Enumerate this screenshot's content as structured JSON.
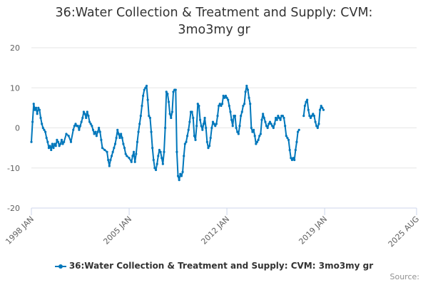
{
  "chart_data": {
    "type": "line",
    "title_lines": [
      "36:Water Collection & Treatment and Supply: CVM:",
      "3mo3my gr"
    ],
    "xlabel": "",
    "ylabel": "",
    "ylim": [
      -20,
      20
    ],
    "yticks": [
      20,
      10,
      0,
      -10,
      -20
    ],
    "x_range_months": [
      0,
      331
    ],
    "xticks": [
      {
        "label": "1998 JAN",
        "month": 0
      },
      {
        "label": "2005 JAN",
        "month": 84
      },
      {
        "label": "2012 JAN",
        "month": 168
      },
      {
        "label": "2019 JAN",
        "month": 252
      },
      {
        "label": "2025 AUG",
        "month": 331
      }
    ],
    "grid": "horizontal",
    "legend_position": "bottom",
    "series": [
      {
        "name": "36:Water Collection & Treatment and Supply: CVM: 3mo3my gr",
        "color": "#0077bb",
        "keypoints": [
          [
            0,
            -3.5
          ],
          [
            1,
            1.5
          ],
          [
            2,
            6.0
          ],
          [
            3,
            4.5
          ],
          [
            4,
            5.0
          ],
          [
            5,
            3.5
          ],
          [
            6,
            5.0
          ],
          [
            7,
            4.5
          ],
          [
            8,
            2.5
          ],
          [
            9,
            1.0
          ],
          [
            10,
            0.0
          ],
          [
            11,
            -0.5
          ],
          [
            12,
            -1.0
          ],
          [
            13,
            -2.5
          ],
          [
            14,
            -3.5
          ],
          [
            15,
            -5.0
          ],
          [
            16,
            -4.5
          ],
          [
            17,
            -5.5
          ],
          [
            18,
            -4.0
          ],
          [
            19,
            -5.0
          ],
          [
            20,
            -4.0
          ],
          [
            21,
            -4.5
          ],
          [
            22,
            -3.0
          ],
          [
            23,
            -3.5
          ],
          [
            24,
            -4.5
          ],
          [
            25,
            -4.0
          ],
          [
            26,
            -3.0
          ],
          [
            27,
            -4.0
          ],
          [
            28,
            -3.5
          ],
          [
            30,
            -1.5
          ],
          [
            32,
            -2.0
          ],
          [
            34,
            -3.5
          ],
          [
            36,
            -0.5
          ],
          [
            37,
            0.5
          ],
          [
            38,
            1.0
          ],
          [
            39,
            0.5
          ],
          [
            40,
            0.5
          ],
          [
            41,
            -0.5
          ],
          [
            42,
            0.5
          ],
          [
            43,
            1.5
          ],
          [
            44,
            2.5
          ],
          [
            45,
            4.0
          ],
          [
            46,
            3.5
          ],
          [
            47,
            2.5
          ],
          [
            48,
            4.0
          ],
          [
            49,
            3.0
          ],
          [
            50,
            1.5
          ],
          [
            51,
            1.0
          ],
          [
            52,
            0.5
          ],
          [
            53,
            -0.5
          ],
          [
            54,
            -1.5
          ],
          [
            55,
            -1.0
          ],
          [
            56,
            -2.0
          ],
          [
            57,
            -1.0
          ],
          [
            58,
            0.0
          ],
          [
            59,
            -1.0
          ],
          [
            60,
            -3.0
          ],
          [
            61,
            -5.0
          ],
          [
            63,
            -5.5
          ],
          [
            65,
            -6.0
          ],
          [
            66,
            -8.0
          ],
          [
            67,
            -9.5
          ],
          [
            68,
            -8.0
          ],
          [
            69,
            -7.0
          ],
          [
            70,
            -6.0
          ],
          [
            71,
            -5.0
          ],
          [
            72,
            -4.0
          ],
          [
            73,
            -2.5
          ],
          [
            74,
            -0.5
          ],
          [
            75,
            -1.5
          ],
          [
            76,
            -2.5
          ],
          [
            77,
            -1.5
          ],
          [
            78,
            -2.5
          ],
          [
            79,
            -4.0
          ],
          [
            80,
            -5.0
          ],
          [
            81,
            -6.5
          ],
          [
            82,
            -7.0
          ],
          [
            84,
            -7.5
          ],
          [
            86,
            -8.5
          ],
          [
            87,
            -7.0
          ],
          [
            88,
            -6.0
          ],
          [
            89,
            -8.5
          ],
          [
            90,
            -6.5
          ],
          [
            91,
            -3.5
          ],
          [
            92,
            -1.0
          ],
          [
            93,
            1.0
          ],
          [
            94,
            3.0
          ],
          [
            95,
            5.5
          ],
          [
            96,
            8.0
          ],
          [
            97,
            9.5
          ],
          [
            98,
            10.0
          ],
          [
            99,
            10.5
          ],
          [
            100,
            7.0
          ],
          [
            101,
            3.0
          ],
          [
            102,
            2.5
          ],
          [
            103,
            -1.0
          ],
          [
            104,
            -5.0
          ],
          [
            105,
            -8.0
          ],
          [
            106,
            -10.0
          ],
          [
            107,
            -10.5
          ],
          [
            108,
            -9.0
          ],
          [
            109,
            -7.0
          ],
          [
            110,
            -5.5
          ],
          [
            111,
            -6.0
          ],
          [
            112,
            -7.5
          ],
          [
            113,
            -9.0
          ],
          [
            114,
            -6.0
          ],
          [
            115,
            0.0
          ],
          [
            116,
            9.0
          ],
          [
            117,
            8.5
          ],
          [
            118,
            6.5
          ],
          [
            119,
            3.5
          ],
          [
            120,
            2.5
          ],
          [
            121,
            4.0
          ],
          [
            122,
            9.0
          ],
          [
            123,
            9.5
          ],
          [
            124,
            9.5
          ],
          [
            125,
            -6.0
          ],
          [
            126,
            -12.0
          ],
          [
            127,
            -13.0
          ],
          [
            128,
            -11.5
          ],
          [
            129,
            -12.0
          ],
          [
            130,
            -11.0
          ],
          [
            131,
            -7.0
          ],
          [
            132,
            -4.0
          ],
          [
            133,
            -3.5
          ],
          [
            134,
            -2.0
          ],
          [
            135,
            -0.5
          ],
          [
            136,
            1.5
          ],
          [
            137,
            4.0
          ],
          [
            138,
            4.0
          ],
          [
            139,
            2.5
          ],
          [
            140,
            -2.0
          ],
          [
            141,
            -3.0
          ],
          [
            142,
            0.5
          ],
          [
            143,
            6.0
          ],
          [
            144,
            5.5
          ],
          [
            145,
            2.0
          ],
          [
            146,
            0.5
          ],
          [
            147,
            -0.5
          ],
          [
            148,
            1.0
          ],
          [
            149,
            2.5
          ],
          [
            150,
            0.0
          ],
          [
            151,
            -3.5
          ],
          [
            152,
            -5.0
          ],
          [
            153,
            -4.5
          ],
          [
            154,
            -2.5
          ],
          [
            155,
            0.0
          ],
          [
            156,
            1.5
          ],
          [
            157,
            1.0
          ],
          [
            158,
            0.5
          ],
          [
            159,
            1.0
          ],
          [
            160,
            3.0
          ],
          [
            161,
            5.5
          ],
          [
            162,
            6.0
          ],
          [
            163,
            5.5
          ],
          [
            164,
            6.0
          ],
          [
            165,
            8.0
          ],
          [
            166,
            7.5
          ],
          [
            167,
            8.0
          ],
          [
            168,
            7.5
          ],
          [
            169,
            7.0
          ],
          [
            170,
            5.5
          ],
          [
            171,
            4.0
          ],
          [
            172,
            2.0
          ],
          [
            173,
            0.5
          ],
          [
            174,
            3.0
          ],
          [
            175,
            3.0
          ],
          [
            176,
            0.0
          ],
          [
            177,
            -1.0
          ],
          [
            178,
            -1.5
          ],
          [
            179,
            0.5
          ],
          [
            180,
            3.0
          ],
          [
            181,
            4.0
          ],
          [
            182,
            5.5
          ],
          [
            183,
            6.0
          ],
          [
            184,
            9.0
          ],
          [
            185,
            10.5
          ],
          [
            186,
            9.5
          ],
          [
            187,
            7.5
          ],
          [
            188,
            6.0
          ],
          [
            189,
            0.0
          ],
          [
            190,
            -1.0
          ],
          [
            191,
            -0.5
          ],
          [
            192,
            -2.0
          ],
          [
            193,
            -4.0
          ],
          [
            194,
            -3.5
          ],
          [
            195,
            -3.0
          ],
          [
            196,
            -2.0
          ],
          [
            197,
            -1.5
          ],
          [
            198,
            2.0
          ],
          [
            199,
            3.5
          ],
          [
            200,
            2.5
          ],
          [
            201,
            1.5
          ],
          [
            202,
            0.5
          ],
          [
            203,
            0.0
          ],
          [
            204,
            1.0
          ],
          [
            205,
            1.5
          ],
          [
            206,
            1.0
          ],
          [
            207,
            0.5
          ],
          [
            208,
            0.0
          ],
          [
            209,
            1.0
          ],
          [
            210,
            2.5
          ],
          [
            211,
            2.0
          ],
          [
            212,
            3.0
          ],
          [
            213,
            2.5
          ],
          [
            214,
            2.0
          ],
          [
            215,
            3.0
          ],
          [
            216,
            3.0
          ],
          [
            217,
            2.5
          ],
          [
            218,
            0.5
          ],
          [
            219,
            -2.0
          ],
          [
            220,
            -2.5
          ],
          [
            221,
            -3.0
          ],
          [
            222,
            -5.5
          ],
          [
            223,
            -7.5
          ],
          [
            224,
            -8.0
          ],
          [
            225,
            -7.5
          ],
          [
            226,
            -8.0
          ],
          [
            227,
            -5.5
          ],
          [
            228,
            -3.5
          ],
          [
            229,
            -1.0
          ],
          [
            230,
            -0.5
          ],
          [
            234,
            3.0
          ],
          [
            235,
            5.5
          ],
          [
            236,
            6.5
          ],
          [
            237,
            7.0
          ],
          [
            238,
            4.5
          ],
          [
            239,
            3.0
          ],
          [
            240,
            2.5
          ],
          [
            241,
            3.0
          ],
          [
            242,
            3.5
          ],
          [
            243,
            3.0
          ],
          [
            244,
            1.5
          ],
          [
            245,
            0.5
          ],
          [
            246,
            0.0
          ],
          [
            247,
            1.0
          ],
          [
            248,
            4.5
          ],
          [
            249,
            5.5
          ],
          [
            250,
            5.0
          ],
          [
            251,
            4.5
          ]
        ]
      }
    ],
    "legend_label": "36:Water Collection & Treatment and Supply: CVM: 3mo3my gr",
    "source_label": "Source:"
  }
}
